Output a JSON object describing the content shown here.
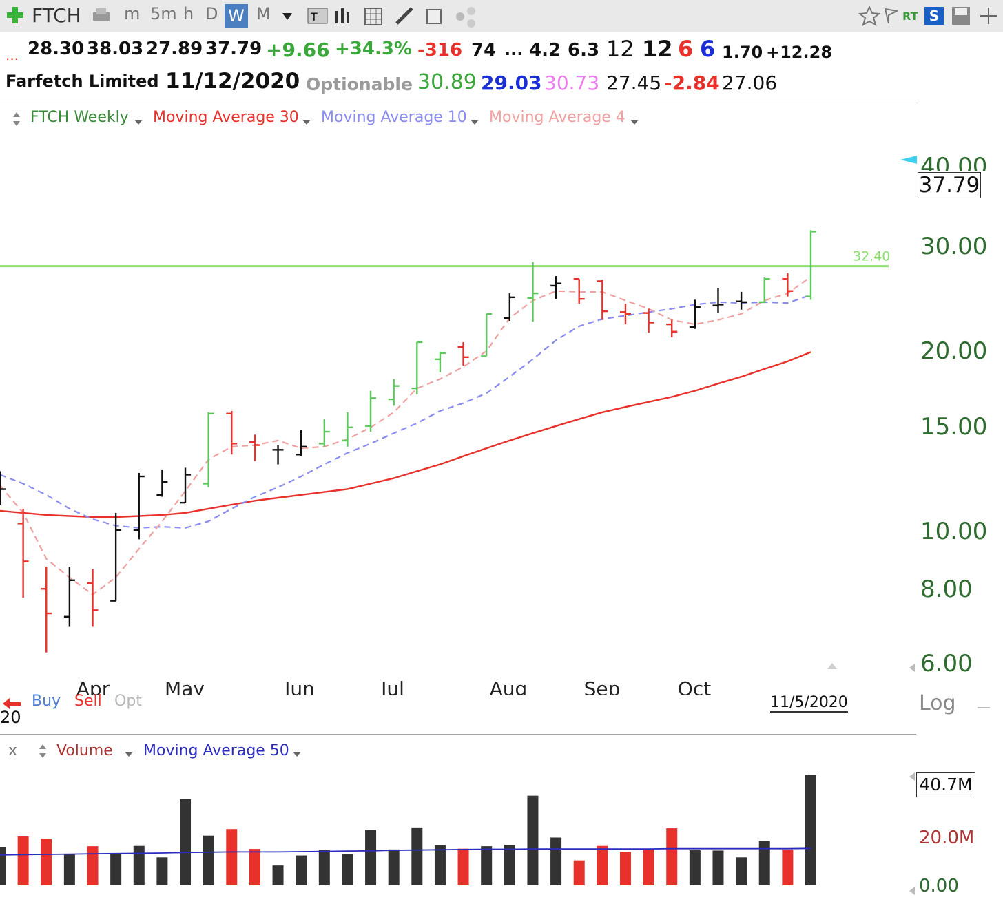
{
  "toolbar": {
    "symbol": "FTCH",
    "intervals": [
      "m",
      "5m",
      "h",
      "D",
      "W",
      "M"
    ],
    "active_interval": "W",
    "rt_label": "RT",
    "s_label": "S"
  },
  "quote_row1": {
    "dots": "...",
    "open": "28.30",
    "high": "38.03",
    "low": "27.89",
    "close": "37.79",
    "change": "+9.66",
    "change_pct": "+34.3%",
    "v1": "-316",
    "v2": "74",
    "v3": "...",
    "v4": "4.2",
    "v5": "6.3",
    "v6": "12",
    "v7": "12",
    "v8": "6",
    "v9": "6",
    "v10": "1.70",
    "v11": "+12.28"
  },
  "quote_row2": {
    "company": "Farfetch Limited",
    "date": "11/12/2020",
    "optionable": "Optionable",
    "p1": "30.89",
    "p2": "29.03",
    "p3": "30.73",
    "p4": "27.45",
    "p5": "-2.84",
    "p6": "27.06"
  },
  "price_legend": {
    "main": "FTCH Weekly",
    "ma30": "Moving Average 30",
    "ma10": "Moving Average 10",
    "ma4": "Moving Average 4"
  },
  "volume_legend": {
    "close": "x",
    "main": "Volume",
    "ma50": "Moving Average 50"
  },
  "signals": {
    "buy": "Buy",
    "sell": "Sell",
    "opt": "Opt",
    "year_fragment": "20"
  },
  "bottom": {
    "date": "11/5/2020",
    "log": "Log"
  },
  "colors": {
    "up": "#5cc85c",
    "down": "#e8312b",
    "neutral": "#111111",
    "ma30": "#e8312b",
    "ma10": "#8a8cf0",
    "ma4": "#f0a0a0",
    "hline": "#86e06a",
    "vol_ma": "#2b2bbf",
    "axis_text": "#2e6b2e"
  },
  "chart_data": [
    {
      "type": "ohlc",
      "title": "FTCH Weekly",
      "scale": "log",
      "y_ticks": [
        "6.00",
        "8.00",
        "10.00",
        "15.00",
        "20.00",
        "30.00",
        "40.00"
      ],
      "x_labels": [
        "Apr",
        "May",
        "Jun",
        "Jul",
        "Aug",
        "Sep",
        "Oct"
      ],
      "last_price_label": "37.79",
      "horizontal_line": {
        "value": 32.4,
        "label": "32.40"
      },
      "bars": [
        {
          "o": 11.9,
          "h": 13.0,
          "l": 11.2,
          "c": 12.0,
          "dir": "neutral"
        },
        {
          "o": 10.3,
          "h": 11.0,
          "l": 7.4,
          "c": 8.7,
          "dir": "down"
        },
        {
          "o": 7.7,
          "h": 8.5,
          "l": 5.8,
          "c": 6.9,
          "dir": "down"
        },
        {
          "o": 6.8,
          "h": 8.5,
          "l": 6.5,
          "c": 8.0,
          "dir": "neutral"
        },
        {
          "o": 7.9,
          "h": 8.4,
          "l": 6.5,
          "c": 7.0,
          "dir": "down"
        },
        {
          "o": 7.3,
          "h": 10.8,
          "l": 7.3,
          "c": 10.0,
          "dir": "neutral"
        },
        {
          "o": 10.0,
          "h": 12.9,
          "l": 9.6,
          "c": 12.7,
          "dir": "neutral"
        },
        {
          "o": 11.7,
          "h": 13.1,
          "l": 11.6,
          "c": 12.4,
          "dir": "neutral"
        },
        {
          "o": 11.3,
          "h": 13.2,
          "l": 11.3,
          "c": 12.8,
          "dir": "neutral"
        },
        {
          "o": 12.3,
          "h": 16.9,
          "l": 12.1,
          "c": 16.8,
          "dir": "up"
        },
        {
          "o": 16.8,
          "h": 17.0,
          "l": 14.0,
          "c": 14.7,
          "dir": "down"
        },
        {
          "o": 14.8,
          "h": 15.3,
          "l": 13.6,
          "c": 14.6,
          "dir": "down"
        },
        {
          "o": 14.3,
          "h": 14.6,
          "l": 13.4,
          "c": 14.3,
          "dir": "neutral"
        },
        {
          "o": 14.0,
          "h": 15.6,
          "l": 13.9,
          "c": 14.5,
          "dir": "neutral"
        },
        {
          "o": 14.7,
          "h": 16.4,
          "l": 14.5,
          "c": 15.5,
          "dir": "up"
        },
        {
          "o": 14.9,
          "h": 16.9,
          "l": 14.5,
          "c": 15.8,
          "dir": "up"
        },
        {
          "o": 15.9,
          "h": 18.6,
          "l": 15.5,
          "c": 18.0,
          "dir": "up"
        },
        {
          "o": 17.9,
          "h": 19.6,
          "l": 17.4,
          "c": 19.0,
          "dir": "up"
        },
        {
          "o": 18.8,
          "h": 23.1,
          "l": 18.3,
          "c": 23.1,
          "dir": "up"
        },
        {
          "o": 21.4,
          "h": 22.1,
          "l": 20.2,
          "c": 22.0,
          "dir": "up"
        },
        {
          "o": 22.6,
          "h": 23.1,
          "l": 20.8,
          "c": 21.6,
          "dir": "down"
        },
        {
          "o": 21.7,
          "h": 26.2,
          "l": 21.7,
          "c": 26.2,
          "dir": "up"
        },
        {
          "o": 25.7,
          "h": 28.7,
          "l": 25.4,
          "c": 28.2,
          "dir": "neutral"
        },
        {
          "o": 28.1,
          "h": 33.0,
          "l": 25.3,
          "c": 28.7,
          "dir": "up"
        },
        {
          "o": 29.7,
          "h": 31.0,
          "l": 28.0,
          "c": 30.0,
          "dir": "neutral"
        },
        {
          "o": 30.6,
          "h": 30.6,
          "l": 27.4,
          "c": 28.0,
          "dir": "down"
        },
        {
          "o": 30.3,
          "h": 30.5,
          "l": 25.5,
          "c": 26.5,
          "dir": "down"
        },
        {
          "o": 26.4,
          "h": 27.4,
          "l": 25.0,
          "c": 26.2,
          "dir": "down"
        },
        {
          "o": 26.3,
          "h": 26.8,
          "l": 24.1,
          "c": 25.2,
          "dir": "down"
        },
        {
          "o": 25.0,
          "h": 25.5,
          "l": 23.6,
          "c": 24.2,
          "dir": "down"
        },
        {
          "o": 24.7,
          "h": 27.9,
          "l": 24.5,
          "c": 27.0,
          "dir": "neutral"
        },
        {
          "o": 27.2,
          "h": 29.4,
          "l": 26.3,
          "c": 27.3,
          "dir": "neutral"
        },
        {
          "o": 27.7,
          "h": 28.9,
          "l": 26.7,
          "c": 27.6,
          "dir": "neutral"
        },
        {
          "o": 27.6,
          "h": 30.8,
          "l": 27.5,
          "c": 30.6,
          "dir": "up"
        },
        {
          "o": 30.6,
          "h": 31.4,
          "l": 28.3,
          "c": 29.0,
          "dir": "down"
        },
        {
          "o": 28.3,
          "h": 38.03,
          "l": 27.89,
          "c": 37.79,
          "dir": "up"
        }
      ],
      "series": [
        {
          "name": "Moving Average 30",
          "values": [
            10.9,
            10.8,
            10.7,
            10.65,
            10.6,
            10.6,
            10.65,
            10.7,
            10.8,
            11.0,
            11.2,
            11.4,
            11.55,
            11.7,
            11.85,
            12.0,
            12.3,
            12.6,
            13.0,
            13.4,
            13.9,
            14.4,
            14.9,
            15.4,
            15.9,
            16.4,
            16.9,
            17.3,
            17.7,
            18.1,
            18.6,
            19.2,
            19.8,
            20.5,
            21.2,
            22.1
          ]
        },
        {
          "name": "Moving Average 10",
          "values": [
            12.8,
            12.3,
            11.7,
            11.0,
            10.5,
            10.2,
            10.1,
            10.15,
            10.1,
            10.4,
            11.0,
            11.6,
            12.1,
            12.7,
            13.4,
            14.1,
            14.7,
            15.4,
            16.1,
            17.0,
            17.6,
            18.4,
            19.8,
            21.4,
            23.3,
            24.8,
            25.6,
            26.0,
            26.4,
            26.8,
            27.3,
            27.6,
            27.5,
            27.6,
            27.5,
            28.5
          ]
        },
        {
          "name": "Moving Average 4",
          "values": [
            12.2,
            10.8,
            8.8,
            8.1,
            7.5,
            8.1,
            9.2,
            10.4,
            11.9,
            13.7,
            14.5,
            14.6,
            14.9,
            14.4,
            14.5,
            15.0,
            15.8,
            16.9,
            18.8,
            19.6,
            20.7,
            22.2,
            25.7,
            27.8,
            29.0,
            28.9,
            28.9,
            27.8,
            26.8,
            25.5,
            25.0,
            25.5,
            26.2,
            27.8,
            28.7,
            30.9
          ]
        }
      ]
    },
    {
      "type": "bar",
      "title": "Volume",
      "y_ticks": [
        "0.00",
        "20.0M"
      ],
      "last_value_label": "40.7M",
      "values": [
        14.0,
        18.0,
        17.2,
        11.5,
        14.4,
        11.5,
        14.5,
        10.3,
        31.7,
        18.3,
        20.7,
        13.4,
        7.3,
        11.0,
        13.1,
        11.4,
        20.5,
        13.2,
        21.3,
        14.8,
        13.5,
        14.4,
        14.9,
        33.0,
        17.6,
        9.2,
        14.5,
        12.3,
        13.3,
        21.0,
        12.9,
        12.8,
        10.3,
        16.3,
        13.2,
        40.7
      ],
      "dirs": [
        "neutral",
        "down",
        "down",
        "neutral",
        "down",
        "neutral",
        "neutral",
        "neutral",
        "neutral",
        "neutral",
        "down",
        "down",
        "neutral",
        "neutral",
        "neutral",
        "neutral",
        "neutral",
        "neutral",
        "neutral",
        "neutral",
        "down",
        "neutral",
        "neutral",
        "neutral",
        "neutral",
        "down",
        "down",
        "down",
        "down",
        "down",
        "neutral",
        "neutral",
        "neutral",
        "neutral",
        "down",
        "neutral"
      ],
      "series": [
        {
          "name": "Moving Average 50",
          "values": [
            11.2,
            11.3,
            11.4,
            11.5,
            11.6,
            11.7,
            11.8,
            11.9,
            12.1,
            12.2,
            12.3,
            12.3,
            12.3,
            12.4,
            12.5,
            12.6,
            12.7,
            12.9,
            13.0,
            13.1,
            13.2,
            13.3,
            13.3,
            13.4,
            13.4,
            13.4,
            13.4,
            13.4,
            13.4,
            13.5,
            13.5,
            13.5,
            13.5,
            13.5,
            13.5,
            13.6
          ]
        }
      ]
    }
  ]
}
